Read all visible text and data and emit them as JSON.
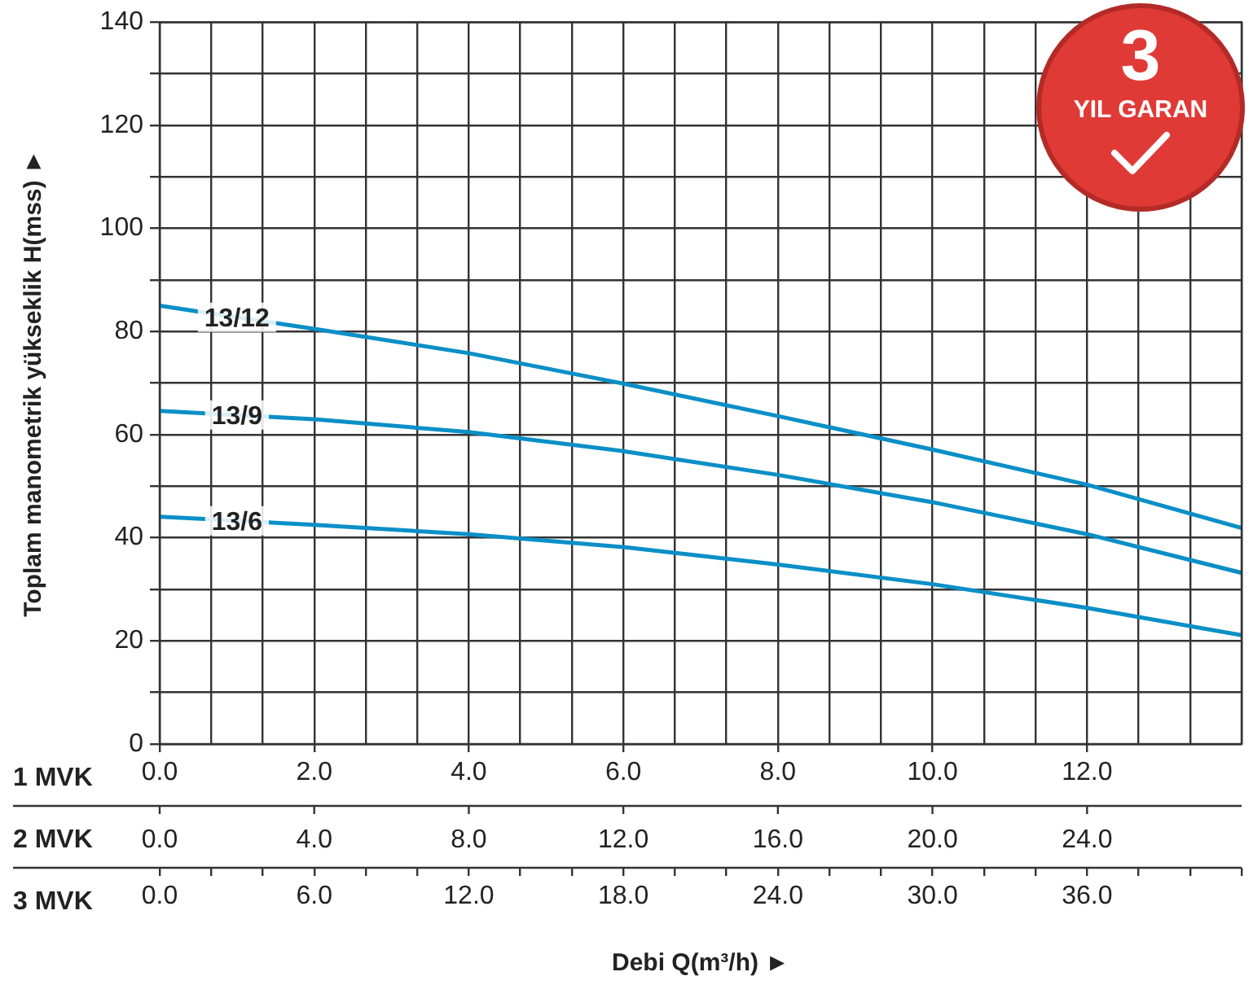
{
  "chart_data": {
    "type": "line",
    "xlabel": "Debi Q(m³/h) ►",
    "ylabel": "Toplam manometrik yükseklik H(mss) ►",
    "annotations": [
      "1 MVK",
      "2 MVK",
      "3 MVK",
      "3",
      "YIL GARAN",
      "0.0",
      "4.0",
      "8.0",
      "12.0",
      "16.0",
      "20.0",
      "24.0"
    ],
    "x": [
      0,
      6,
      12,
      18,
      24,
      30,
      36,
      42
    ],
    "series": [
      {
        "name": "13/12",
        "color": "#0a8fc7",
        "values": [
          85,
          80.5,
          75.8,
          69.9,
          63.6,
          57.1,
          50.3,
          41.9
        ]
      },
      {
        "name": "13/9",
        "color": "#0a8fc7",
        "values": [
          64.6,
          63,
          60.5,
          56.8,
          52.2,
          46.9,
          40.7,
          33.2
        ]
      },
      {
        "name": "13/6",
        "color": "#0a8fc7",
        "values": [
          44.1,
          42.5,
          40.7,
          38.2,
          34.8,
          31,
          26.4,
          21.1
        ]
      }
    ],
    "x2lim": [
      0,
      14
    ],
    "x2ticks": [
      {
        "value": 0,
        "label": "0.0"
      },
      {
        "value": 2,
        "label": "2.0"
      },
      {
        "value": 4,
        "label": "4.0"
      },
      {
        "value": 6,
        "label": "6.0"
      },
      {
        "value": 8,
        "label": "8.0"
      },
      {
        "value": 10,
        "label": "10.0"
      },
      {
        "value": 12,
        "label": "12.0"
      }
    ],
    "xlim": [
      0,
      42
    ],
    "xticks": [
      {
        "value": 0,
        "label": "0.0"
      },
      {
        "value": 2,
        "label": null
      },
      {
        "value": 4,
        "label": null
      },
      {
        "value": 6,
        "label": "6.0"
      },
      {
        "value": 8,
        "label": null
      },
      {
        "value": 10,
        "label": null
      },
      {
        "value": 12,
        "label": "12.0"
      },
      {
        "value": 14,
        "label": null
      },
      {
        "value": 16,
        "label": null
      },
      {
        "value": 18,
        "label": "18.0"
      },
      {
        "value": 20,
        "label": null
      },
      {
        "value": 22,
        "label": null
      },
      {
        "value": 24,
        "label": "24.0"
      },
      {
        "value": 26,
        "label": null
      },
      {
        "value": 28,
        "label": null
      },
      {
        "value": 30,
        "label": "30.0"
      },
      {
        "value": 32,
        "label": null
      },
      {
        "value": 34,
        "label": null
      },
      {
        "value": 36,
        "label": "36.0"
      },
      {
        "value": 38,
        "label": null
      },
      {
        "value": 40,
        "label": null
      },
      {
        "value": 42,
        "label": null
      }
    ],
    "ylim": [
      0,
      140
    ],
    "yticks": [
      0,
      {
        "value": 10,
        "label": null
      },
      20,
      {
        "value": 30,
        "label": null
      },
      40,
      {
        "value": 50,
        "label": null
      },
      60,
      {
        "value": 70,
        "label": null
      },
      80,
      {
        "value": 90,
        "label": null
      },
      100,
      {
        "value": 110,
        "label": null
      },
      120,
      {
        "value": 130,
        "label": null
      },
      140
    ],
    "grid": true,
    "legend": false,
    "marker": "none",
    "line_style": "solid"
  }
}
